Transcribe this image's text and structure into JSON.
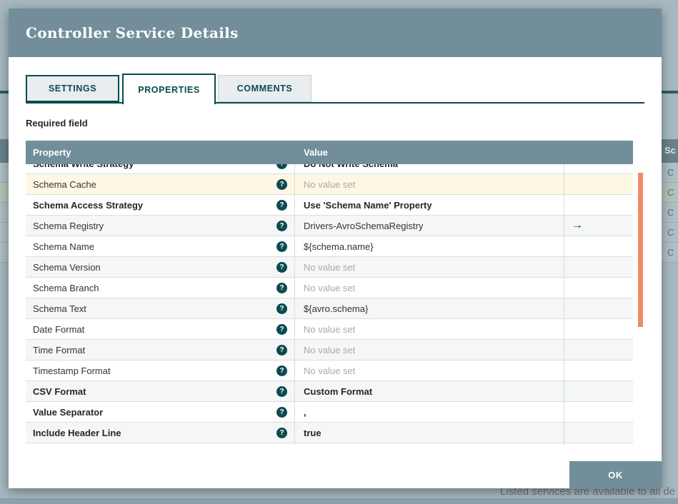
{
  "dialog": {
    "title": "Controller Service Details",
    "tabs": [
      {
        "label": "SETTINGS",
        "active": false
      },
      {
        "label": "PROPERTIES",
        "active": true
      },
      {
        "label": "COMMENTS",
        "active": false
      }
    ],
    "required_field_label": "Required field",
    "table": {
      "columns": {
        "property": "Property",
        "value": "Value"
      },
      "help_icon_glyph": "?",
      "goto_arrow_glyph": "→",
      "rows": [
        {
          "name": "Schema Write Strategy",
          "value": "Do Not Write Schema",
          "required": true,
          "unset": false,
          "goto": false,
          "highlighted": false
        },
        {
          "name": "Schema Cache",
          "value": "No value set",
          "required": false,
          "unset": true,
          "goto": false,
          "highlighted": true
        },
        {
          "name": "Schema Access Strategy",
          "value": "Use 'Schema Name' Property",
          "required": true,
          "unset": false,
          "goto": false,
          "highlighted": false
        },
        {
          "name": "Schema Registry",
          "value": "Drivers-AvroSchemaRegistry",
          "required": false,
          "unset": false,
          "goto": true,
          "highlighted": false
        },
        {
          "name": "Schema Name",
          "value": "${schema.name}",
          "required": false,
          "unset": false,
          "goto": false,
          "highlighted": false
        },
        {
          "name": "Schema Version",
          "value": "No value set",
          "required": false,
          "unset": true,
          "goto": false,
          "highlighted": false
        },
        {
          "name": "Schema Branch",
          "value": "No value set",
          "required": false,
          "unset": true,
          "goto": false,
          "highlighted": false
        },
        {
          "name": "Schema Text",
          "value": "${avro.schema}",
          "required": false,
          "unset": false,
          "goto": false,
          "highlighted": false
        },
        {
          "name": "Date Format",
          "value": "No value set",
          "required": false,
          "unset": true,
          "goto": false,
          "highlighted": false
        },
        {
          "name": "Time Format",
          "value": "No value set",
          "required": false,
          "unset": true,
          "goto": false,
          "highlighted": false
        },
        {
          "name": "Timestamp Format",
          "value": "No value set",
          "required": false,
          "unset": true,
          "goto": false,
          "highlighted": false
        },
        {
          "name": "CSV Format",
          "value": "Custom Format",
          "required": true,
          "unset": false,
          "goto": false,
          "highlighted": false
        },
        {
          "name": "Value Separator",
          "value": ",",
          "required": true,
          "unset": false,
          "goto": false,
          "highlighted": false
        },
        {
          "name": "Include Header Line",
          "value": "true",
          "required": true,
          "unset": false,
          "goto": false,
          "highlighted": false
        }
      ]
    },
    "ok_label": "OK"
  },
  "background": {
    "partial_table_header": "Sc",
    "partial_rows": [
      "C",
      "C",
      "C",
      "C",
      "C"
    ],
    "highlighted_row_index": 1,
    "footer_text": "Listed services are available to all de"
  },
  "colors": {
    "dialog_header_bg": "#728E9B",
    "accent_teal": "#0B4A50",
    "table_header_bg": "#728E9B",
    "row_stripe": "#F4F6F7",
    "row_highlight": "#FDF7E4",
    "unset_text": "#A9A9A9",
    "scrollbar": "#F08A68",
    "backdrop": "#A6B7BF",
    "ok_button_bg": "#728E9B"
  }
}
